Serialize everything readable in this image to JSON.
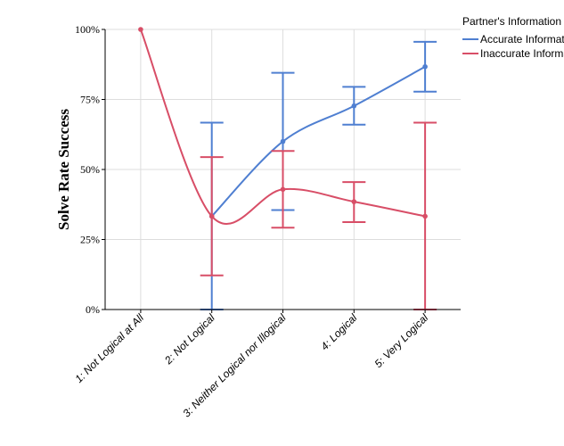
{
  "chart_data": {
    "type": "line",
    "ylabel": "Solve Rate Success",
    "xlabel": "",
    "ylim": [
      0,
      100
    ],
    "yticks": [
      "0%",
      "25%",
      "50%",
      "75%",
      "100%"
    ],
    "ytick_values": [
      0,
      25,
      50,
      75,
      100
    ],
    "categories": [
      "1: Not Logical at All",
      "2: Not Logical",
      "3: Neither Logical nor Illogical",
      "4: Logical",
      "5: Very Logical"
    ],
    "grid": true,
    "legend": {
      "title": "Partner's Information",
      "placement": "top-right"
    },
    "series": [
      {
        "name": "Accurate Information",
        "color": "#4f7fd1",
        "values": [
          null,
          33.3,
          60,
          72.7,
          86.7
        ],
        "error_low": [
          null,
          0,
          35.5,
          66,
          77.8
        ],
        "error_high": [
          null,
          66.7,
          84.5,
          79.5,
          95.6
        ]
      },
      {
        "name": "Inaccurate Information",
        "color": "#d84e67",
        "values": [
          100,
          33.3,
          42.9,
          38.5,
          33.3
        ],
        "error_low": [
          null,
          12.2,
          29.2,
          31.2,
          0
        ],
        "error_high": [
          null,
          54.4,
          56.6,
          45.5,
          66.7
        ]
      }
    ]
  }
}
